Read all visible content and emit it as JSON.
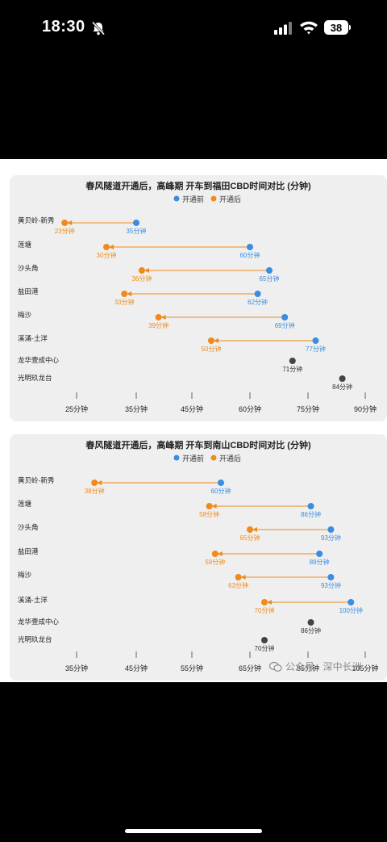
{
  "status_bar": {
    "time": "18:30",
    "battery": "38"
  },
  "watermark": {
    "text": "公众号 · 深中长洲"
  },
  "colors": {
    "before": "#3b8de0",
    "after": "#f08a1c",
    "single": "#444444",
    "card_bg": "#efefef"
  },
  "chart_data": [
    {
      "type": "dumbbell",
      "title": "春风隧道开通后，高峰期 开车到福田CBD时间对比 (分钟)",
      "legend": {
        "before": "开通前",
        "after": "开通后",
        "placement": "top-center"
      },
      "categories": [
        "黄贝岭-新秀",
        "莲塘",
        "沙头角",
        "盐田港",
        "梅沙",
        "溪涌-土洋",
        "龙华壹成中心",
        "光明玖龙台"
      ],
      "series": [
        {
          "name": "开通前",
          "values": [
            35,
            60,
            65,
            62,
            69,
            77,
            null,
            null
          ]
        },
        {
          "name": "开通后",
          "values": [
            23,
            30,
            36,
            33,
            39,
            50,
            null,
            null
          ]
        }
      ],
      "reference_points": [
        null,
        null,
        null,
        null,
        null,
        null,
        71,
        84
      ],
      "value_labels": {
        "before": [
          "35分钟",
          "60分钟",
          "65分钟",
          "62分钟",
          "69分钟",
          "77分钟",
          null,
          null
        ],
        "after": [
          "23分钟",
          "30分钟",
          "36分钟",
          "33分钟",
          "39分钟",
          "50分钟",
          null,
          null
        ],
        "reference": [
          null,
          null,
          null,
          null,
          null,
          null,
          "71分钟",
          "84分钟"
        ]
      },
      "x_ticks": [
        25,
        35,
        45,
        60,
        75,
        90
      ],
      "x_tick_labels": [
        "25分钟",
        "35分钟",
        "45分钟",
        "60分钟",
        "75分钟",
        "90分钟"
      ]
    },
    {
      "type": "dumbbell",
      "title": "春风隧道开通后，高峰期 开车到南山CBD时间对比 (分钟)",
      "legend": {
        "before": "开通前",
        "after": "开通后",
        "placement": "top-center"
      },
      "categories": [
        "黄贝岭-新秀",
        "莲塘",
        "沙头角",
        "盐田港",
        "梅沙",
        "溪涌-土洋",
        "龙华壹成中心",
        "光明玖龙台"
      ],
      "series": [
        {
          "name": "开通前",
          "values": [
            60,
            86,
            93,
            89,
            93,
            100,
            null,
            null
          ]
        },
        {
          "name": "开通后",
          "values": [
            38,
            58,
            65,
            59,
            63,
            70,
            null,
            null
          ]
        }
      ],
      "reference_points": [
        null,
        null,
        null,
        null,
        null,
        null,
        86,
        70
      ],
      "value_labels": {
        "before": [
          "60分钟",
          "86分钟",
          "93分钟",
          "89分钟",
          "93分钟",
          "100分钟",
          null,
          null
        ],
        "after": [
          "38分钟",
          "58分钟",
          "65分钟",
          "59分钟",
          "63分钟",
          "70分钟",
          null,
          null
        ],
        "reference": [
          null,
          null,
          null,
          null,
          null,
          null,
          "86分钟",
          "70分钟"
        ]
      },
      "x_ticks": [
        35,
        45,
        55,
        65,
        85,
        105
      ],
      "x_tick_labels": [
        "35分钟",
        "45分钟",
        "55分钟",
        "65分钟",
        "85分钟",
        "105分钟"
      ]
    }
  ]
}
